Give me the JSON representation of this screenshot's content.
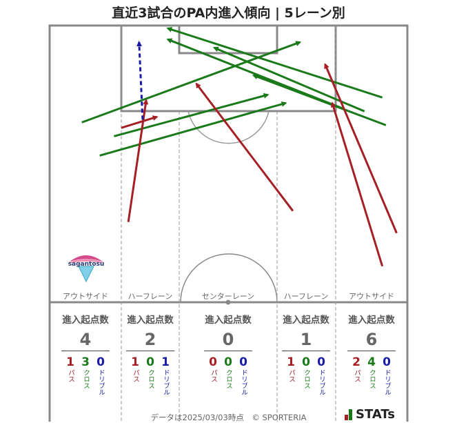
{
  "title": "直近3試合のPA内進入傾向 | 5レーン別",
  "lanes": [
    {
      "label": "アウトサイド",
      "total_label": "進入起点数",
      "total": "4",
      "pass": "1",
      "cross": "3",
      "dribble": "0"
    },
    {
      "label": "ハーフレーン",
      "total_label": "進入起点数",
      "total": "2",
      "pass": "1",
      "cross": "0",
      "dribble": "1"
    },
    {
      "label": "センターレーン",
      "total_label": "進入起点数",
      "total": "0",
      "pass": "0",
      "cross": "0",
      "dribble": "0"
    },
    {
      "label": "ハーフレーン",
      "total_label": "進入起点数",
      "total": "1",
      "pass": "1",
      "cross": "0",
      "dribble": "0"
    },
    {
      "label": "アウトサイド",
      "total_label": "進入起点数",
      "total": "6",
      "pass": "2",
      "cross": "4",
      "dribble": "0"
    }
  ],
  "categories": {
    "pass": "パス",
    "cross": "クロス",
    "dribble": "ドリブル"
  },
  "colors": {
    "pass": "#a51f24",
    "cross": "#1a7a1a",
    "dribble": "#1a1aa6"
  },
  "team_logo": {
    "text": "sagantosu"
  },
  "footer": "データは2025/03/03時点　© SPORTERIA",
  "brand": "STATs",
  "chart_data": {
    "type": "arrows",
    "pitch": {
      "x_range": [
        0,
        100
      ],
      "y_range": [
        0,
        100
      ]
    },
    "arrows": [
      {
        "kind": "cross",
        "from": [
          9,
          65
        ],
        "to": [
          70,
          94
        ]
      },
      {
        "kind": "cross",
        "from": [
          14,
          53
        ],
        "to": [
          66,
          72
        ]
      },
      {
        "kind": "cross",
        "from": [
          18,
          60
        ],
        "to": [
          61,
          75
        ]
      },
      {
        "kind": "pass",
        "from": [
          20,
          63
        ],
        "to": [
          30,
          67
        ]
      },
      {
        "kind": "pass",
        "from": [
          22,
          29
        ],
        "to": [
          27,
          73
        ]
      },
      {
        "kind": "dribble",
        "from": [
          26,
          66
        ],
        "to": [
          25,
          94
        ]
      },
      {
        "kind": "pass",
        "from": [
          68,
          33
        ],
        "to": [
          41,
          79
        ]
      },
      {
        "kind": "cross",
        "from": [
          93,
          74
        ],
        "to": [
          33,
          99
        ]
      },
      {
        "kind": "cross",
        "from": [
          82,
          70
        ],
        "to": [
          33,
          95
        ]
      },
      {
        "kind": "cross",
        "from": [
          88,
          69
        ],
        "to": [
          46,
          92
        ]
      },
      {
        "kind": "cross",
        "from": [
          94,
          64
        ],
        "to": [
          57,
          82
        ]
      },
      {
        "kind": "pass",
        "from": [
          97,
          25
        ],
        "to": [
          77,
          86
        ]
      },
      {
        "kind": "pass",
        "from": [
          93,
          13
        ],
        "to": [
          79,
          72
        ]
      }
    ]
  }
}
